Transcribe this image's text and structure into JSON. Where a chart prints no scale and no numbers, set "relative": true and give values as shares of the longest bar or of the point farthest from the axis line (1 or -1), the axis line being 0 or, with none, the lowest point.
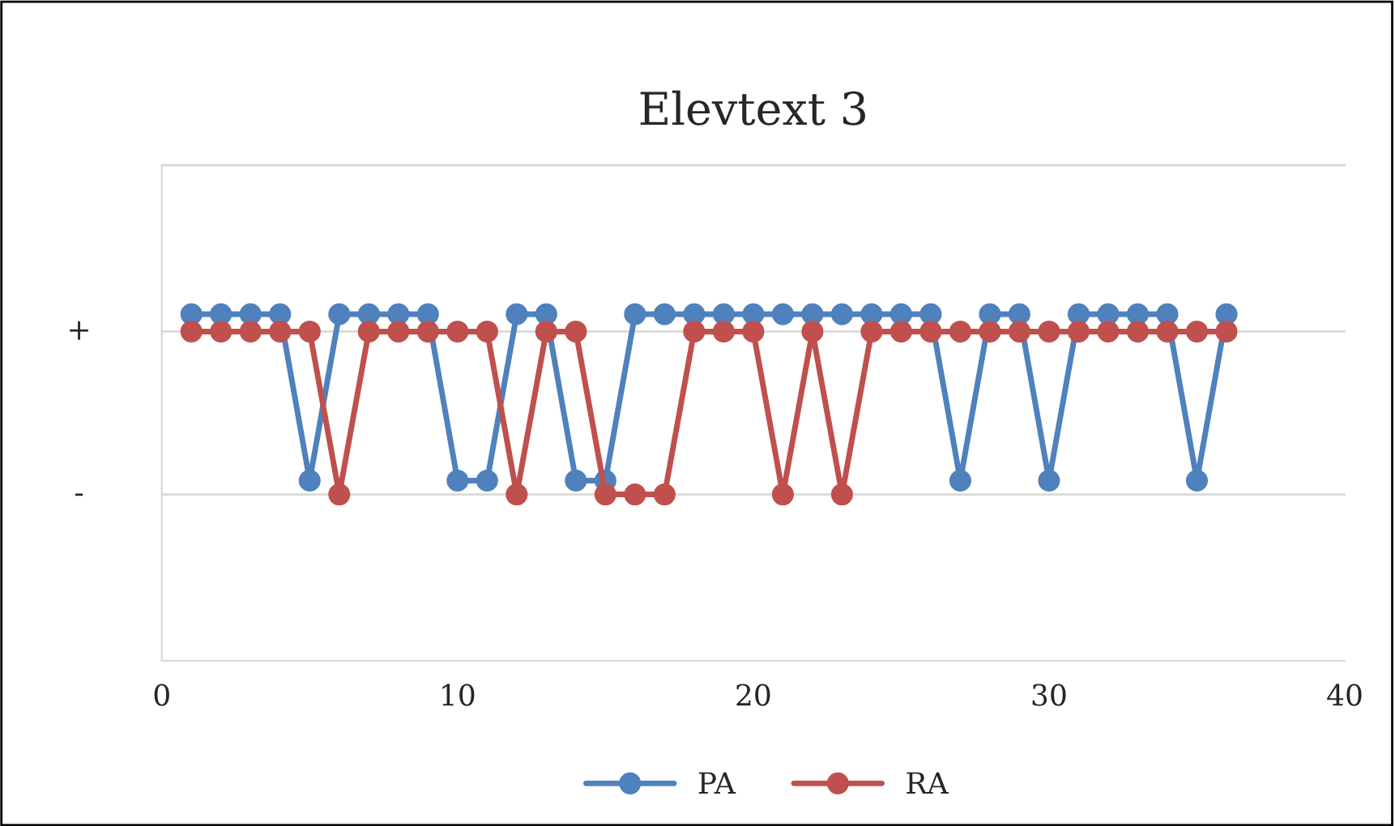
{
  "chart_data": {
    "type": "line",
    "title": "Elevtext 3",
    "relative": true,
    "x": [
      1,
      2,
      3,
      4,
      5,
      6,
      7,
      8,
      9,
      10,
      11,
      12,
      13,
      14,
      15,
      16,
      17,
      18,
      19,
      20,
      21,
      22,
      23,
      24,
      25,
      26,
      27,
      28,
      29,
      30,
      31,
      32,
      33,
      34,
      35,
      36
    ],
    "series": [
      {
        "name": "PA",
        "color": "#4f81bd",
        "values": [
          1,
          1,
          1,
          1,
          0.52,
          1,
          1,
          1,
          1,
          0.52,
          0.52,
          1,
          1,
          0.52,
          0.52,
          1,
          1,
          1,
          1,
          1,
          1,
          1,
          1,
          1,
          1,
          1,
          0.52,
          1,
          1,
          0.52,
          1,
          1,
          1,
          1,
          0.52,
          1
        ]
      },
      {
        "name": "RA",
        "color": "#c0504d",
        "values": [
          0.95,
          0.95,
          0.95,
          0.95,
          0.95,
          0.48,
          0.95,
          0.95,
          0.95,
          0.95,
          0.95,
          0.48,
          0.95,
          0.95,
          0.48,
          0.48,
          0.48,
          0.95,
          0.95,
          0.95,
          0.48,
          0.95,
          0.48,
          0.95,
          0.95,
          0.95,
          0.95,
          0.95,
          0.95,
          0.95,
          0.95,
          0.95,
          0.95,
          0.95,
          0.95,
          0.95
        ]
      }
    ],
    "xlim": [
      0,
      40
    ],
    "xticks": [
      0,
      10,
      20,
      30,
      40
    ],
    "ref_lines": [
      {
        "axis": "y",
        "value": 0.95,
        "label": "+"
      },
      {
        "axis": "y",
        "value": 0.48,
        "label": "-"
      },
      {
        "axis": "y",
        "value": 1.43
      }
    ],
    "legend": "bottom",
    "marker": "circle",
    "line_style": "solid"
  }
}
